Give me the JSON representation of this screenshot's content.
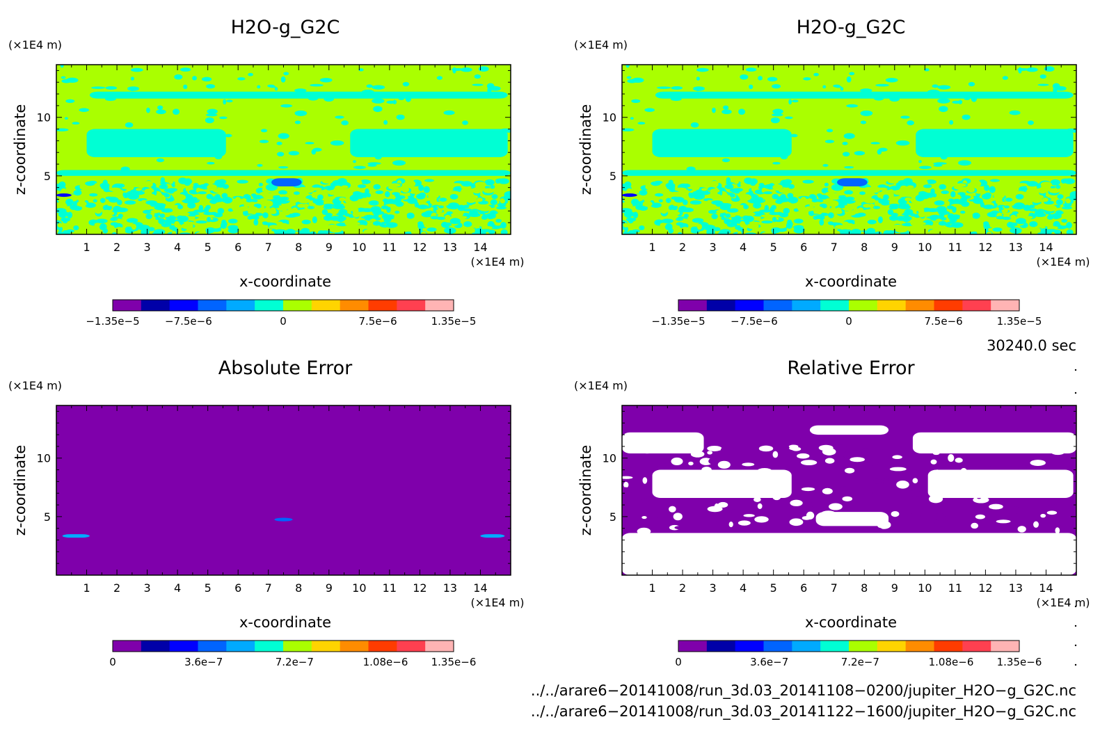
{
  "chart_data": [
    {
      "type": "heatmap",
      "title": "H2O-g_G2C",
      "xlabel": "x-coordinate",
      "ylabel": "z-coordinate",
      "x_unit": "(×1E4 m)",
      "y_unit": "(×1E4 m)",
      "xlim": [
        0,
        15
      ],
      "ylim": [
        0,
        14.5
      ],
      "x_ticks": [
        1,
        2,
        3,
        4,
        5,
        6,
        7,
        8,
        9,
        10,
        11,
        12,
        13,
        14
      ],
      "y_ticks": [
        5,
        10
      ],
      "colorbar": {
        "range": [
          -1.35e-05,
          1.35e-05
        ],
        "tick_values": [
          -1.35e-05,
          -7.5e-06,
          0,
          7.5e-06,
          1.35e-05
        ],
        "tick_labels": [
          "-1.35e-5",
          "-7.5e-6",
          "0",
          "7.5e-6",
          "1.35e-5"
        ],
        "colors": [
          "#7f00ab",
          "#0000a8",
          "#0000ff",
          "#0064ff",
          "#00aaff",
          "#00ffd4",
          "#aaff00",
          "#ffd400",
          "#ff8c00",
          "#ff3c00",
          "#ff4050",
          "#ffb4b4"
        ]
      },
      "background_color": "#aaff00",
      "features": [
        {
          "name": "upper band",
          "color": "#00ffd4",
          "x": [
            1.1,
            14.9
          ],
          "z": [
            11.6,
            12.2
          ]
        },
        {
          "name": "mid band left",
          "color": "#00ffd4",
          "x": [
            1.0,
            5.6
          ],
          "z": [
            6.6,
            9.0
          ]
        },
        {
          "name": "mid band right",
          "color": "#00ffd4",
          "x": [
            9.7,
            14.9
          ],
          "z": [
            6.6,
            9.0
          ]
        },
        {
          "name": "lower band",
          "color": "#00ffd4",
          "x": [
            0,
            15
          ],
          "z": [
            5.0,
            5.5
          ]
        },
        {
          "name": "center spot",
          "color": "#0064ff",
          "x": [
            7.1,
            8.1
          ],
          "z": [
            4.1,
            4.8
          ]
        },
        {
          "name": "edge spot",
          "color": "#0000ff",
          "x": [
            0,
            0.5
          ],
          "z": [
            3.2,
            3.5
          ]
        }
      ]
    },
    {
      "type": "heatmap",
      "title": "H2O-g_G2C",
      "xlabel": "x-coordinate",
      "ylabel": "z-coordinate",
      "x_unit": "(×1E4 m)",
      "y_unit": "(×1E4 m)",
      "xlim": [
        0,
        15
      ],
      "ylim": [
        0,
        14.5
      ],
      "x_ticks": [
        1,
        2,
        3,
        4,
        5,
        6,
        7,
        8,
        9,
        10,
        11,
        12,
        13,
        14
      ],
      "y_ticks": [
        5,
        10
      ],
      "colorbar": {
        "range": [
          -1.35e-05,
          1.35e-05
        ],
        "tick_values": [
          -1.35e-05,
          -7.5e-06,
          0,
          7.5e-06,
          1.35e-05
        ],
        "tick_labels": [
          "-1.35e-5",
          "-7.5e-6",
          "0",
          "7.5e-6",
          "1.35e-5"
        ],
        "colors": [
          "#7f00ab",
          "#0000a8",
          "#0000ff",
          "#0064ff",
          "#00aaff",
          "#00ffd4",
          "#aaff00",
          "#ffd400",
          "#ff8c00",
          "#ff3c00",
          "#ff4050",
          "#ffb4b4"
        ]
      },
      "background_color": "#aaff00",
      "features": [
        {
          "name": "upper band",
          "color": "#00ffd4",
          "x": [
            1.1,
            14.9
          ],
          "z": [
            11.6,
            12.2
          ]
        },
        {
          "name": "mid band left",
          "color": "#00ffd4",
          "x": [
            1.0,
            5.6
          ],
          "z": [
            6.6,
            9.0
          ]
        },
        {
          "name": "mid band right",
          "color": "#00ffd4",
          "x": [
            9.7,
            14.9
          ],
          "z": [
            6.6,
            9.0
          ]
        },
        {
          "name": "lower band",
          "color": "#00ffd4",
          "x": [
            0,
            15
          ],
          "z": [
            5.0,
            5.5
          ]
        },
        {
          "name": "center spot",
          "color": "#0064ff",
          "x": [
            7.1,
            8.1
          ],
          "z": [
            4.1,
            4.8
          ]
        },
        {
          "name": "edge spot",
          "color": "#0000ff",
          "x": [
            0,
            0.5
          ],
          "z": [
            3.2,
            3.5
          ]
        }
      ]
    },
    {
      "type": "heatmap",
      "title": "Absolute Error",
      "xlabel": "x-coordinate",
      "ylabel": "z-coordinate",
      "x_unit": "(×1E4 m)",
      "y_unit": "(×1E4 m)",
      "xlim": [
        0,
        15
      ],
      "ylim": [
        0,
        14.5
      ],
      "x_ticks": [
        1,
        2,
        3,
        4,
        5,
        6,
        7,
        8,
        9,
        10,
        11,
        12,
        13,
        14
      ],
      "y_ticks": [
        5,
        10
      ],
      "colorbar": {
        "range": [
          0,
          1.35e-06
        ],
        "tick_values": [
          0,
          3.6e-07,
          7.2e-07,
          1.08e-06,
          1.35e-06
        ],
        "tick_labels": [
          "0",
          "3.6e-7",
          "7.2e-7",
          "1.08e-6",
          "1.35e-6"
        ],
        "colors": [
          "#7f00ab",
          "#0000a8",
          "#0000ff",
          "#0064ff",
          "#00aaff",
          "#00ffd4",
          "#aaff00",
          "#ffd400",
          "#ff8c00",
          "#ff3c00",
          "#ff4050",
          "#ffb4b4"
        ]
      },
      "background_color": "#7f00ab",
      "features": [
        {
          "name": "left spot",
          "color": "#00aaff",
          "x": [
            0.2,
            1.1
          ],
          "z": [
            3.2,
            3.5
          ]
        },
        {
          "name": "center spot",
          "color": "#0064ff",
          "x": [
            7.2,
            7.8
          ],
          "z": [
            4.6,
            4.9
          ]
        },
        {
          "name": "right spot",
          "color": "#00aaff",
          "x": [
            14.0,
            14.8
          ],
          "z": [
            3.2,
            3.5
          ]
        }
      ]
    },
    {
      "type": "heatmap",
      "title": "Relative Error",
      "xlabel": "x-coordinate",
      "ylabel": "z-coordinate",
      "x_unit": "(×1E4 m)",
      "y_unit": "(×1E4 m)",
      "xlim": [
        0,
        15
      ],
      "ylim": [
        0,
        14.5
      ],
      "x_ticks": [
        1,
        2,
        3,
        4,
        5,
        6,
        7,
        8,
        9,
        10,
        11,
        12,
        13,
        14
      ],
      "y_ticks": [
        5,
        10
      ],
      "colorbar": {
        "range": [
          0,
          1.35e-06
        ],
        "tick_values": [
          0,
          3.6e-07,
          7.2e-07,
          1.08e-06,
          1.35e-06
        ],
        "tick_labels": [
          "0",
          "3.6e-7",
          "7.2e-7",
          "1.08e-6",
          "1.35e-6"
        ],
        "colors": [
          "#7f00ab",
          "#0000a8",
          "#0000ff",
          "#0064ff",
          "#00aaff",
          "#00ffd4",
          "#aaff00",
          "#ffd400",
          "#ff8c00",
          "#ff3c00",
          "#ff4050",
          "#ffb4b4"
        ]
      },
      "background_color": "#7f00ab",
      "features": [
        {
          "name": "upper region left",
          "color": "#ffffff",
          "x": [
            0,
            2.7
          ],
          "z": [
            10.4,
            12.2
          ]
        },
        {
          "name": "upper region center",
          "color": "#ffffff",
          "x": [
            6.2,
            8.8
          ],
          "z": [
            12.0,
            12.8
          ]
        },
        {
          "name": "upper region right",
          "color": "#ffffff",
          "x": [
            9.6,
            15
          ],
          "z": [
            10.4,
            12.2
          ]
        },
        {
          "name": "mid region left",
          "color": "#ffffff",
          "x": [
            1.0,
            5.6
          ],
          "z": [
            6.6,
            9.0
          ]
        },
        {
          "name": "mid region right",
          "color": "#ffffff",
          "x": [
            10.1,
            14.9
          ],
          "z": [
            6.6,
            9.0
          ]
        },
        {
          "name": "center lobe",
          "color": "#ffffff",
          "x": [
            6.4,
            8.8
          ],
          "z": [
            4.2,
            5.4
          ]
        },
        {
          "name": "bottom region",
          "color": "#ffffff",
          "x": [
            0,
            15
          ],
          "z": [
            0,
            3.6
          ]
        }
      ]
    }
  ],
  "time_label": "30240.0 sec",
  "file_paths": [
    "../../arare6-20141008/run_3d.03_20141108-0200/jupiter_H2O-g_G2C.nc",
    "../../arare6-20141008/run_3d.03_20141122-1600/jupiter_H2O-g_G2C.nc"
  ]
}
